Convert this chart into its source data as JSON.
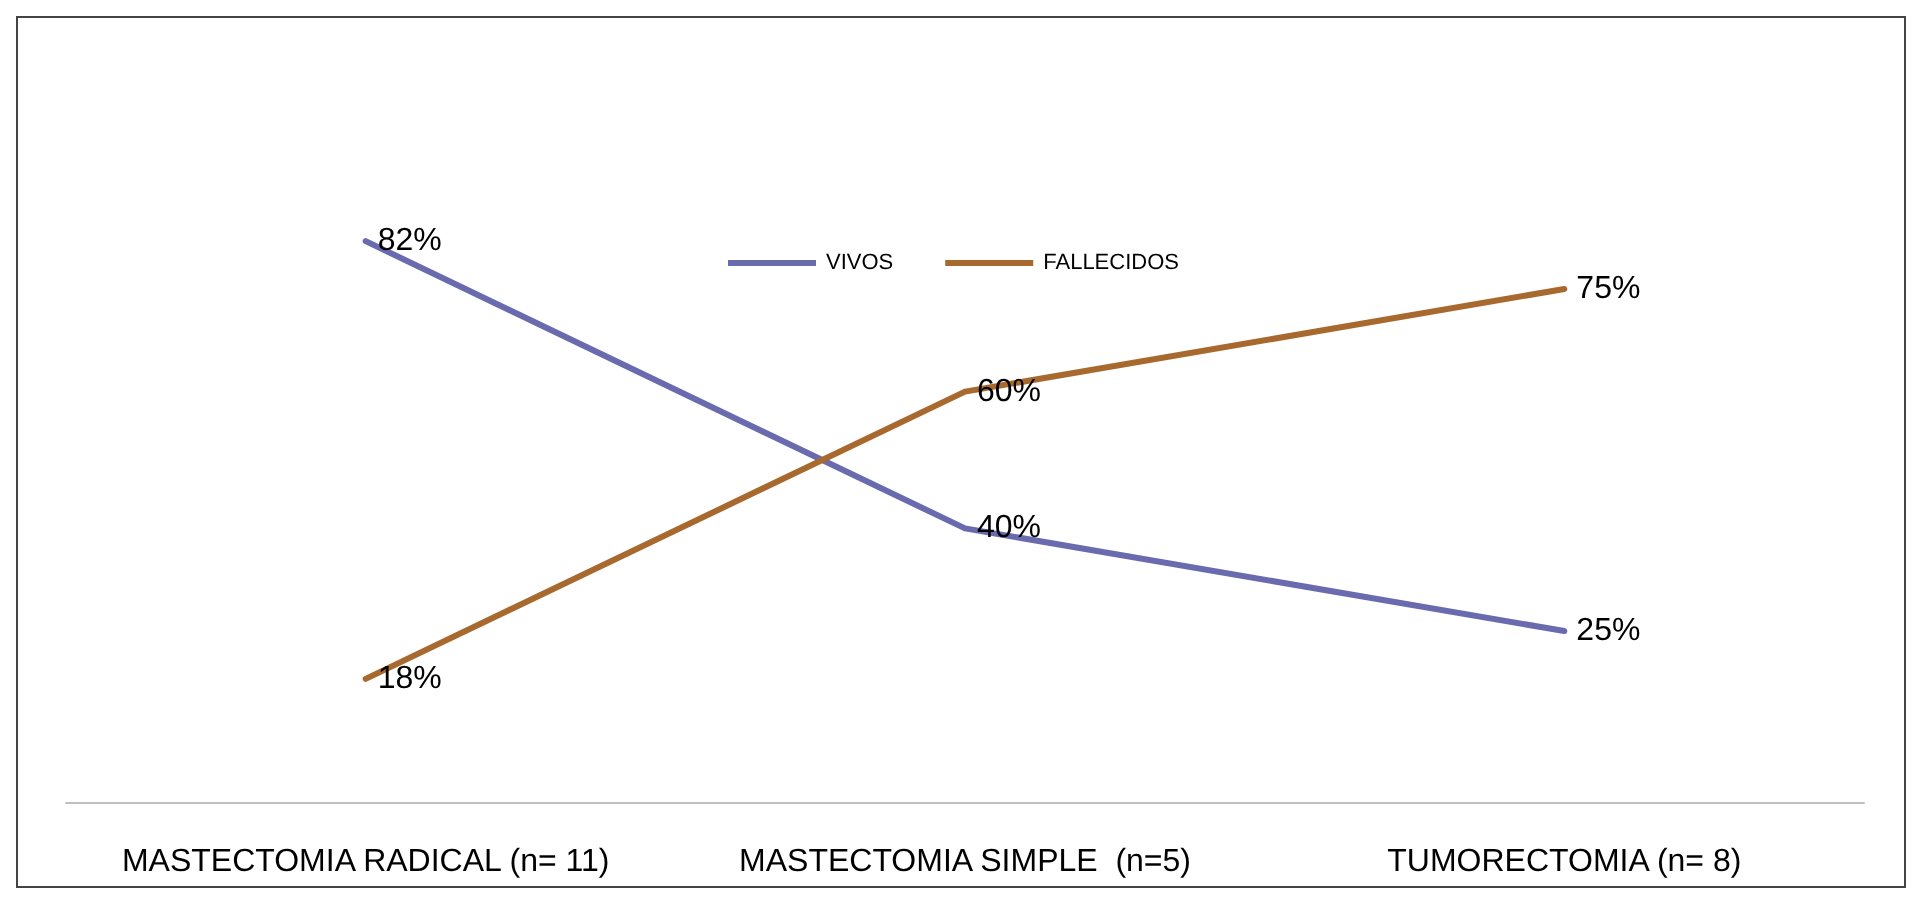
{
  "chart_data": {
    "type": "line",
    "categories": [
      "MASTECTOMIA RADICAL (n= 11)",
      "MASTECTOMIA SIMPLE  (n=5)",
      "TUMORECTOMIA (n= 8)"
    ],
    "series": [
      {
        "name": "VIVOS",
        "color": "#6a6aae",
        "values": [
          82,
          40,
          25
        ],
        "value_labels": [
          "82%",
          "40%",
          "25%"
        ]
      },
      {
        "name": "FALLECIDOS",
        "color": "#a8692e",
        "values": [
          18,
          60,
          75
        ],
        "value_labels": [
          "18%",
          "60%",
          "75%"
        ]
      }
    ],
    "tick_labels": "x",
    "legend": "top",
    "marker": "none",
    "line_style": "solid",
    "grid": false
  }
}
